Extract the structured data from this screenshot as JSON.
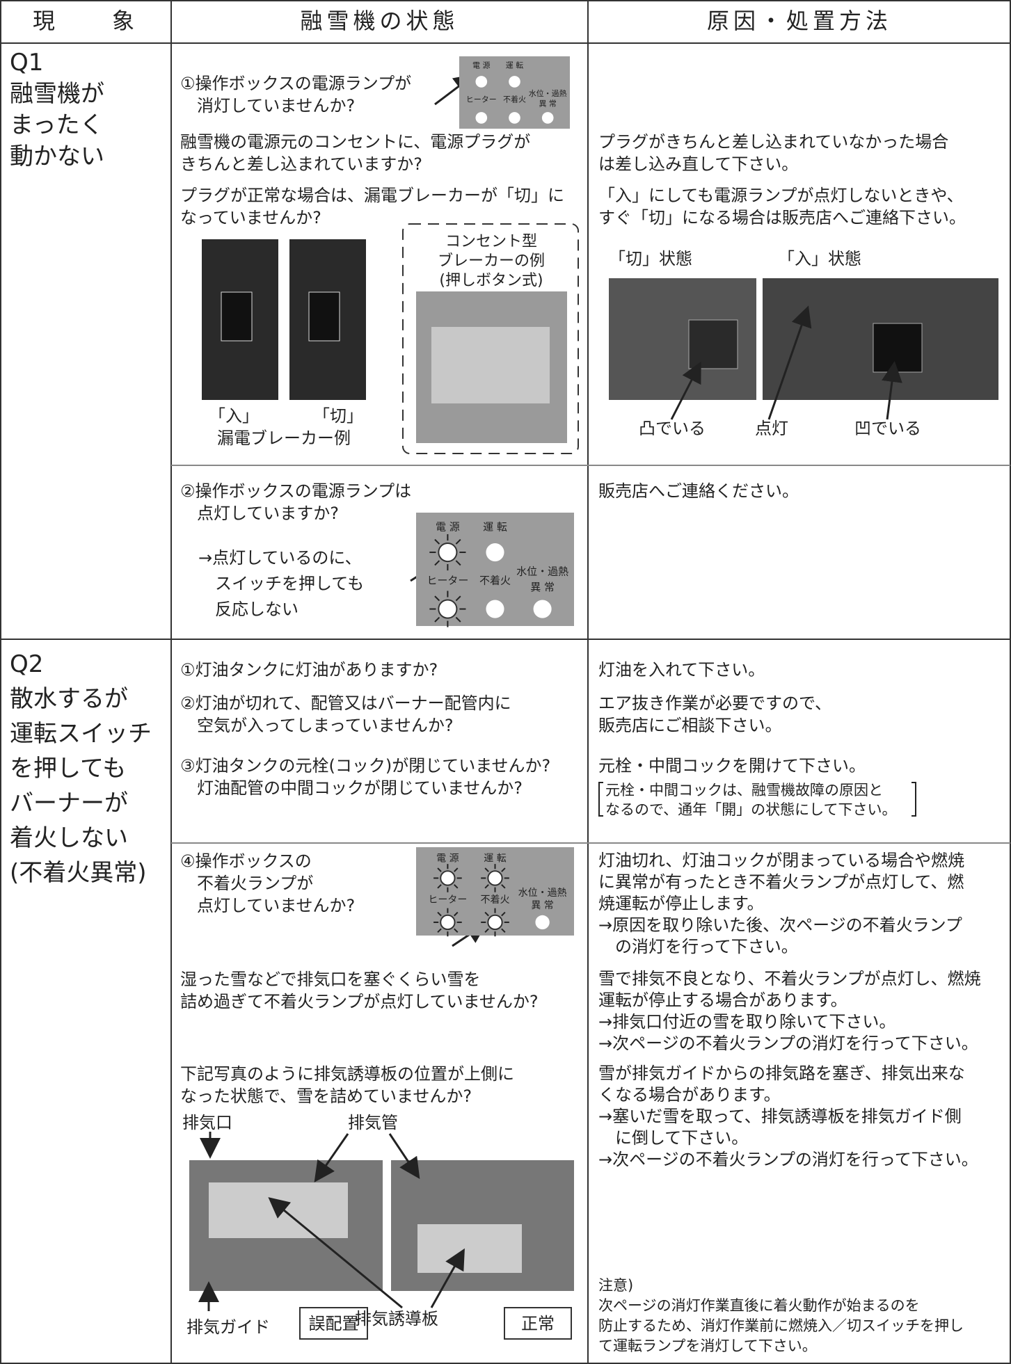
{
  "header": {
    "phenomenon": "現　　象",
    "state": "融雪機の状態",
    "cause": "原因・処置方法"
  },
  "panel_labels": [
    "電 源",
    "運 転",
    "ヒーター",
    "不着火",
    "水位・過熱",
    "異 常"
  ],
  "q1": {
    "label": [
      "Q1",
      "融雪機が",
      "まったく",
      "動かない"
    ],
    "check1": [
      "①操作ボックスの電源ランプが",
      "　消灯していませんか?"
    ],
    "check2": [
      "融雪機の電源元のコンセントに、電源プラグが",
      "きちんと差し込まれていますか?"
    ],
    "answer2": [
      "プラグがきちんと差し込まれていなかった場合",
      "は差し込み直して下さい。"
    ],
    "check3": [
      "プラグが正常な場合は、漏電ブレーカーが「切」に",
      "なっていませんか?"
    ],
    "answer3": [
      "「入」にしても電源ランプが点灯しないときや、",
      "すぐ「切」になる場合は販売店へご連絡下さい。"
    ],
    "breaker_labels": [
      "「入」",
      "「切」",
      "漏電ブレーカー例"
    ],
    "outlet_note": [
      "コンセント型",
      "ブレーカーの例",
      "(押しボタン式)"
    ],
    "state_labels": [
      "「切」状態",
      "「入」状態"
    ],
    "photo_labels": [
      "凸でいる",
      "点灯",
      "凹でいる"
    ],
    "check4": [
      "②操作ボックスの電源ランプは",
      "　点灯していますか?"
    ],
    "check4_note": [
      "→点灯しているのに、",
      "　スイッチを押しても",
      "　反応しない"
    ],
    "answer4": "販売店へご連絡ください。"
  },
  "q2": {
    "label": [
      "Q2",
      "散水するが",
      "運転スイッチ",
      "を押しても",
      "バーナーが",
      "着火しない",
      "(不着火異常)"
    ],
    "check1": "①灯油タンクに灯油がありますか?",
    "answer1": "灯油を入れて下さい。",
    "check2": [
      "②灯油が切れて、配管又はバーナー配管内に",
      "　空気が入ってしまっていませんか?"
    ],
    "answer2": [
      "エア抜き作業が必要ですので、",
      "販売店にご相談下さい。"
    ],
    "check3": [
      "③灯油タンクの元栓(コック)が閉じていませんか?",
      "　灯油配管の中間コックが閉じていませんか?"
    ],
    "answer3": "元栓・中間コックを開けて下さい。",
    "answer3_note": [
      "元栓・中間コックは、融雪機故障の原因と",
      "なるので、通年「開」の状態にして下さい。"
    ],
    "check4": [
      "④操作ボックスの",
      "　不着火ランプが",
      "　点灯していませんか?"
    ],
    "answer4": [
      "灯油切れ、灯油コックが閉まっている場合や燃焼",
      "に異常が有ったとき不着火ランプが点灯して、燃",
      "焼運転が停止します。",
      "→原因を取り除いた後、次ページの不着火ランプ",
      "　の消灯を行って下さい。"
    ],
    "check5": [
      "湿った雪などで排気口を塞ぐくらい雪を",
      "詰め過ぎて不着火ランプが点灯していませんか?"
    ],
    "answer5": [
      "雪で排気不良となり、不着火ランプが点灯し、燃焼",
      "運転が停止する場合があります。",
      "→排気口付近の雪を取り除いて下さい。",
      "→次ページの不着火ランプの消灯を行って下さい。"
    ],
    "check6": [
      "下記写真のように排気誘導板の位置が上側に",
      "なった状態で、雪を詰めていませんか?"
    ],
    "answer6": [
      "雪が排気ガイドからの排気路を塞ぎ、排気出来な",
      "くなる場合があります。",
      "→塞いだ雪を取って、排気誘導板を排気ガイド側",
      "　に倒して下さい。",
      "→次ページの不着火ランプの消灯を行って下さい。"
    ],
    "photo_labels": [
      "排気口",
      "排気管",
      "排気誘導板",
      "排気ガイド"
    ],
    "photo_captions": [
      "誤配置",
      "正常"
    ],
    "caution": [
      "注意)",
      "次ページの消灯作業直後に着火動作が始まるのを",
      "防止するため、消灯作業前に燃焼入／切スイッチを押し",
      "て運転ランプを消灯して下さい。"
    ]
  }
}
